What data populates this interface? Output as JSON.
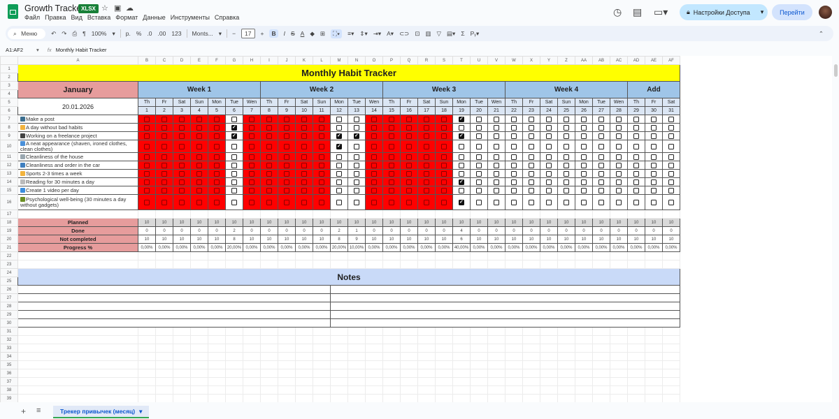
{
  "app": {
    "title": "Growth Tracker",
    "badge": "XLSX",
    "menu": [
      "Файл",
      "Правка",
      "Вид",
      "Вставка",
      "Формат",
      "Данные",
      "Инструменты",
      "Справка"
    ]
  },
  "header_right": {
    "share": "Настройки Доступа",
    "go": "Перейти"
  },
  "toolbar": {
    "search": "Меню",
    "zoom": "100%",
    "currency": "р.",
    "percent": "%",
    "dec_less": ".0",
    "dec_more": ".00",
    "format_123": "123",
    "font": "Monts...",
    "font_size": "17"
  },
  "formula": {
    "cell_ref": "A1:AF2",
    "content": "Monthly Habit Tracker"
  },
  "columns": [
    "A",
    "B",
    "C",
    "D",
    "E",
    "F",
    "G",
    "H",
    "I",
    "J",
    "K",
    "L",
    "M",
    "N",
    "O",
    "P",
    "Q",
    "R",
    "S",
    "T",
    "U",
    "V",
    "W",
    "X",
    "Y",
    "Z",
    "AA",
    "AB",
    "AC",
    "AD",
    "AE",
    "AF"
  ],
  "sheet": {
    "title": "Monthly Habit Tracker",
    "month": "January",
    "date": "20.01.2026",
    "weeks": [
      {
        "label": "Week 1",
        "days": 7
      },
      {
        "label": "Week 2",
        "days": 7
      },
      {
        "label": "Week 3",
        "days": 7
      },
      {
        "label": "Week 4",
        "days": 7
      },
      {
        "label": "Add",
        "days": 3
      }
    ],
    "weekdays": [
      "Th",
      "Fr",
      "Sat",
      "Sun",
      "Mon",
      "Tue",
      "Wen",
      "Th",
      "Fr",
      "Sat",
      "Sun",
      "Mon",
      "Tue",
      "Wen",
      "Th",
      "Fr",
      "Sat",
      "Sun",
      "Mon",
      "Tue",
      "Wen",
      "Th",
      "Fr",
      "Sat",
      "Sun",
      "Mon",
      "Tue",
      "Wen",
      "Th",
      "Fr",
      "Sat"
    ],
    "habits": [
      {
        "icon": "phone-icon",
        "color": "#3b6e8f",
        "label": "Make a post"
      },
      {
        "icon": "hand-icon",
        "color": "#f2b33d",
        "label": "A day without bad habits"
      },
      {
        "icon": "laptop-icon",
        "color": "#444444",
        "label": "Working on a freelance project"
      },
      {
        "icon": "info-icon",
        "color": "#4a90d9",
        "label": "A neat appearance (shaven, ironed clothes, clean clothes)"
      },
      {
        "icon": "house-icon",
        "color": "#9aa7b0",
        "label": "Cleanliness of the house"
      },
      {
        "icon": "car-icon",
        "color": "#3f7fbf",
        "label": "Cleanliness and order in the car"
      },
      {
        "icon": "muscle-icon",
        "color": "#f2b33d",
        "label": "Sports 2-3 times a week"
      },
      {
        "icon": "book-icon",
        "color": "#bbbbbb",
        "label": "Reading for 30 minutes a day"
      },
      {
        "icon": "video-icon",
        "color": "#3c8dde",
        "label": "Create 1 video per day"
      },
      {
        "icon": "meditation-icon",
        "color": "#6b8e23",
        "label": "Psychological well-being (30 minutes a day without gadgets)"
      }
    ],
    "highlighted_days": [
      1,
      2,
      3,
      4,
      5,
      7,
      8,
      9,
      10,
      11,
      14,
      15,
      16,
      17,
      18
    ],
    "checked": {
      "6": [
        1,
        2
      ],
      "12": [
        2,
        3
      ],
      "13": [
        2
      ],
      "19": [
        0,
        2,
        7,
        9
      ]
    },
    "stats": {
      "labels": [
        "Planned",
        "Done",
        "Not completed",
        "Progress %"
      ],
      "planned": [
        "10",
        "10",
        "10",
        "10",
        "10",
        "10",
        "10",
        "10",
        "10",
        "10",
        "10",
        "10",
        "10",
        "10",
        "10",
        "10",
        "10",
        "10",
        "10",
        "10",
        "10",
        "10",
        "10",
        "10",
        "10",
        "10",
        "10",
        "10",
        "10",
        "10",
        "10"
      ],
      "done": [
        "0",
        "0",
        "0",
        "0",
        "0",
        "2",
        "0",
        "0",
        "0",
        "0",
        "0",
        "2",
        "1",
        "0",
        "0",
        "0",
        "0",
        "0",
        "4",
        "0",
        "0",
        "0",
        "0",
        "0",
        "0",
        "0",
        "0",
        "0",
        "0",
        "0",
        "0"
      ],
      "not_completed": [
        "10",
        "10",
        "10",
        "10",
        "10",
        "8",
        "10",
        "10",
        "10",
        "10",
        "10",
        "8",
        "9",
        "10",
        "10",
        "10",
        "10",
        "10",
        "6",
        "10",
        "10",
        "10",
        "10",
        "10",
        "10",
        "10",
        "10",
        "10",
        "10",
        "10",
        "10"
      ],
      "progress": [
        "0,00%",
        "0,00%",
        "0,00%",
        "0,00%",
        "0,00%",
        "20,00%",
        "0,00%",
        "0,00%",
        "0,00%",
        "0,00%",
        "0,00%",
        "20,00%",
        "10,00%",
        "0,00%",
        "0,00%",
        "0,00%",
        "0,00%",
        "0,00%",
        "40,00%",
        "0,00%",
        "0,00%",
        "0,00%",
        "0,00%",
        "0,00%",
        "0,00%",
        "0,00%",
        "0,00%",
        "0,00%",
        "0,00%",
        "0,00%",
        "0,00%"
      ]
    },
    "notes_title": "Notes"
  },
  "tabs": [
    {
      "label": "Трекер привычек (месяц)"
    }
  ],
  "colors": {
    "title_bg": "#ffff00",
    "month_bg": "#e69c9c",
    "week_bg": "#9fc5e8",
    "missed": "#ff0000",
    "notes_bg": "#c9daf8",
    "accent": "#0b57d0"
  }
}
